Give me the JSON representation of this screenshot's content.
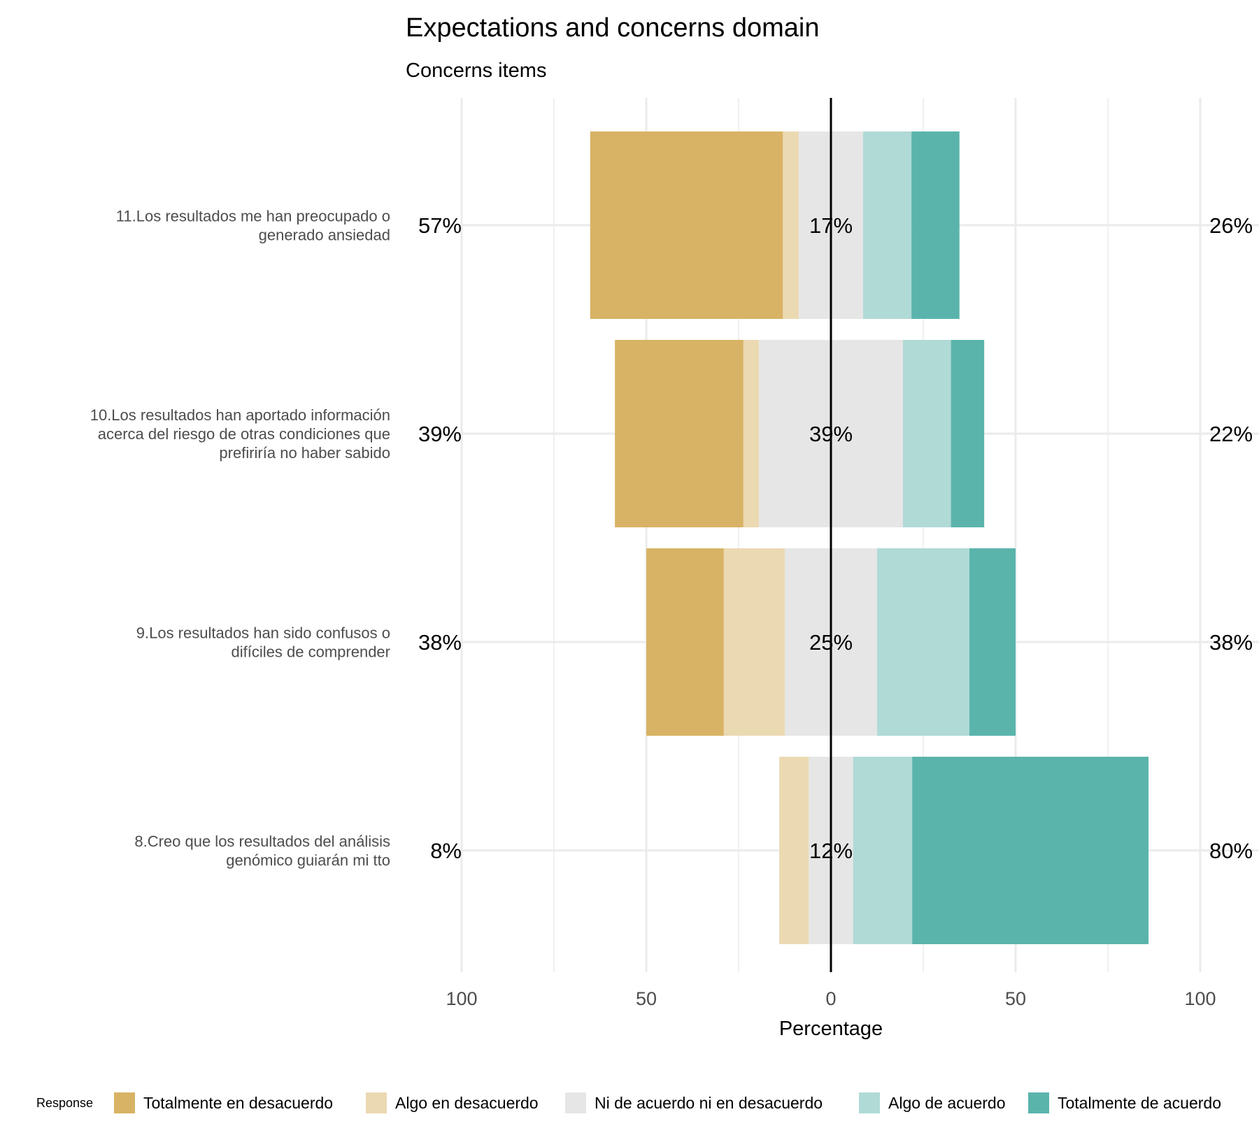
{
  "chart_data": {
    "type": "bar",
    "orientation": "horizontal",
    "stacking": "diverging",
    "title": "Expectations and concerns domain",
    "subtitle": "Concerns items",
    "xlabel": "Percentage",
    "xlim": [
      -100,
      100
    ],
    "x_ticks": [
      {
        "value": -100,
        "label": "100"
      },
      {
        "value": -50,
        "label": "50"
      },
      {
        "value": 0,
        "label": "0"
      },
      {
        "value": 50,
        "label": "50"
      },
      {
        "value": 100,
        "label": "100"
      }
    ],
    "grid": true,
    "legend_title": "Response",
    "legend_position": "bottom",
    "series": [
      {
        "name": "Totalmente en desacuerdo",
        "color": "#D8B365"
      },
      {
        "name": "Algo en desacuerdo",
        "color": "#EBD9B2"
      },
      {
        "name": "Ni de acuerdo ni en desacuerdo",
        "color": "#E6E6E6"
      },
      {
        "name": "Algo de acuerdo",
        "color": "#B0DAD6"
      },
      {
        "name": "Totalmente de acuerdo",
        "color": "#5AB4AC"
      }
    ],
    "items": [
      {
        "label": [
          "11.Los resultados me han preocupado o",
          "generado ansiedad"
        ],
        "values": [
          52.2,
          4.3,
          17.4,
          13.1,
          13.0
        ],
        "low_label": "57%",
        "neutral_label": "17%",
        "high_label": "26%"
      },
      {
        "label": [
          "10.Los resultados han aportado información",
          "acerca del riesgo de otras condiciones que",
          "prefiriría no haber sabido"
        ],
        "values": [
          34.8,
          4.2,
          39.0,
          13.0,
          9.0
        ],
        "low_label": "39%",
        "neutral_label": "39%",
        "high_label": "22%"
      },
      {
        "label": [
          "9.Los resultados han sido confusos o",
          "difíciles de comprender"
        ],
        "values": [
          21.0,
          16.5,
          25.0,
          25.0,
          12.5
        ],
        "low_label": "38%",
        "neutral_label": "25%",
        "high_label": "38%"
      },
      {
        "label": [
          "8.Creo que los resultados del análisis",
          "genómico guiarán mi tto"
        ],
        "values": [
          0.0,
          8.0,
          12.0,
          16.0,
          64.0
        ],
        "low_label": "8%",
        "neutral_label": "12%",
        "high_label": "80%"
      }
    ]
  }
}
